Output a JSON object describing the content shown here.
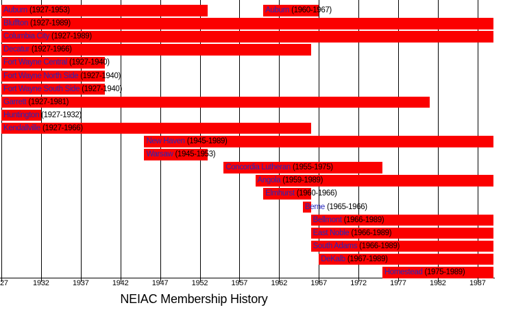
{
  "title": "NEIAC Membership History",
  "colors": {
    "bar": "#fb0000",
    "school_link": "#2626bb",
    "year_text": "#000000",
    "grid": "#000000",
    "background": "#ffffff"
  },
  "axis": {
    "tick_years": [
      1927,
      1932,
      1937,
      1942,
      1947,
      1952,
      1957,
      1962,
      1967,
      1972,
      1977,
      1982,
      1987
    ],
    "tick_labels": [
      "27",
      "1932",
      "1937",
      "1942",
      "1947",
      "1952",
      "1957",
      "1962",
      "1967",
      "1972",
      "1977",
      "1982",
      "1987"
    ]
  },
  "chart_data": {
    "type": "bar",
    "subtype": "horizontal-timeline-gantt",
    "title": "NEIAC Membership History",
    "xlabel": "",
    "ylabel": "",
    "xlim": [
      1927,
      1989
    ],
    "grid": true,
    "rows": [
      {
        "name": "Auburn",
        "periods": [
          {
            "start": 1927,
            "end": 1953,
            "years_label": "(1927-1953)"
          },
          {
            "start": 1960,
            "end": 1967,
            "years_label": "(1960-1967)"
          }
        ]
      },
      {
        "name": "Bluffton",
        "periods": [
          {
            "start": 1927,
            "end": 1989,
            "years_label": "(1927-1989)"
          }
        ]
      },
      {
        "name": "Columbia City",
        "periods": [
          {
            "start": 1927,
            "end": 1989,
            "years_label": "(1927-1989)"
          }
        ]
      },
      {
        "name": "Decatur",
        "periods": [
          {
            "start": 1927,
            "end": 1966,
            "years_label": "(1927-1966)"
          }
        ]
      },
      {
        "name": "Fort Wayne Central",
        "periods": [
          {
            "start": 1927,
            "end": 1940,
            "years_label": "(1927-1940)"
          }
        ]
      },
      {
        "name": "Fort Wayne North Side",
        "periods": [
          {
            "start": 1927,
            "end": 1940,
            "years_label": "(1927-1940)"
          }
        ]
      },
      {
        "name": "Fort Wayne South Side",
        "periods": [
          {
            "start": 1927,
            "end": 1940,
            "years_label": "(1927-1940)"
          }
        ]
      },
      {
        "name": "Garrett",
        "periods": [
          {
            "start": 1927,
            "end": 1981,
            "years_label": "(1927-1981)"
          }
        ]
      },
      {
        "name": "Huntington",
        "periods": [
          {
            "start": 1927,
            "end": 1932,
            "years_label": "(1927-1932)"
          }
        ]
      },
      {
        "name": "Kendallville",
        "periods": [
          {
            "start": 1927,
            "end": 1966,
            "years_label": "(1927-1966)"
          }
        ]
      },
      {
        "name": "New Haven",
        "periods": [
          {
            "start": 1945,
            "end": 1989,
            "years_label": "(1945-1989)"
          }
        ]
      },
      {
        "name": "Warsaw",
        "periods": [
          {
            "start": 1945,
            "end": 1953,
            "years_label": "(1945-1953)"
          }
        ]
      },
      {
        "name": "Concordia Lutheran",
        "periods": [
          {
            "start": 1955,
            "end": 1975,
            "years_label": "(1955-1975)"
          }
        ]
      },
      {
        "name": "Angola",
        "periods": [
          {
            "start": 1959,
            "end": 1989,
            "years_label": "(1959-1989)"
          }
        ]
      },
      {
        "name": "Elmhurst",
        "periods": [
          {
            "start": 1960,
            "end": 1966,
            "years_label": "(1960-1966)"
          }
        ]
      },
      {
        "name": "Berne",
        "periods": [
          {
            "start": 1965,
            "end": 1966,
            "years_label": "(1965-1966)"
          }
        ]
      },
      {
        "name": "Bellmont",
        "periods": [
          {
            "start": 1966,
            "end": 1989,
            "years_label": "(1966-1989)"
          }
        ]
      },
      {
        "name": "East Noble",
        "periods": [
          {
            "start": 1966,
            "end": 1989,
            "years_label": "(1966-1989)"
          }
        ]
      },
      {
        "name": "South Adams",
        "periods": [
          {
            "start": 1966,
            "end": 1989,
            "years_label": "(1966-1989)"
          }
        ]
      },
      {
        "name": "DeKalb",
        "periods": [
          {
            "start": 1967,
            "end": 1989,
            "years_label": "(1967-1989)"
          }
        ]
      },
      {
        "name": "Homestead",
        "periods": [
          {
            "start": 1975,
            "end": 1989,
            "years_label": "(1975-1989)"
          }
        ]
      }
    ]
  }
}
